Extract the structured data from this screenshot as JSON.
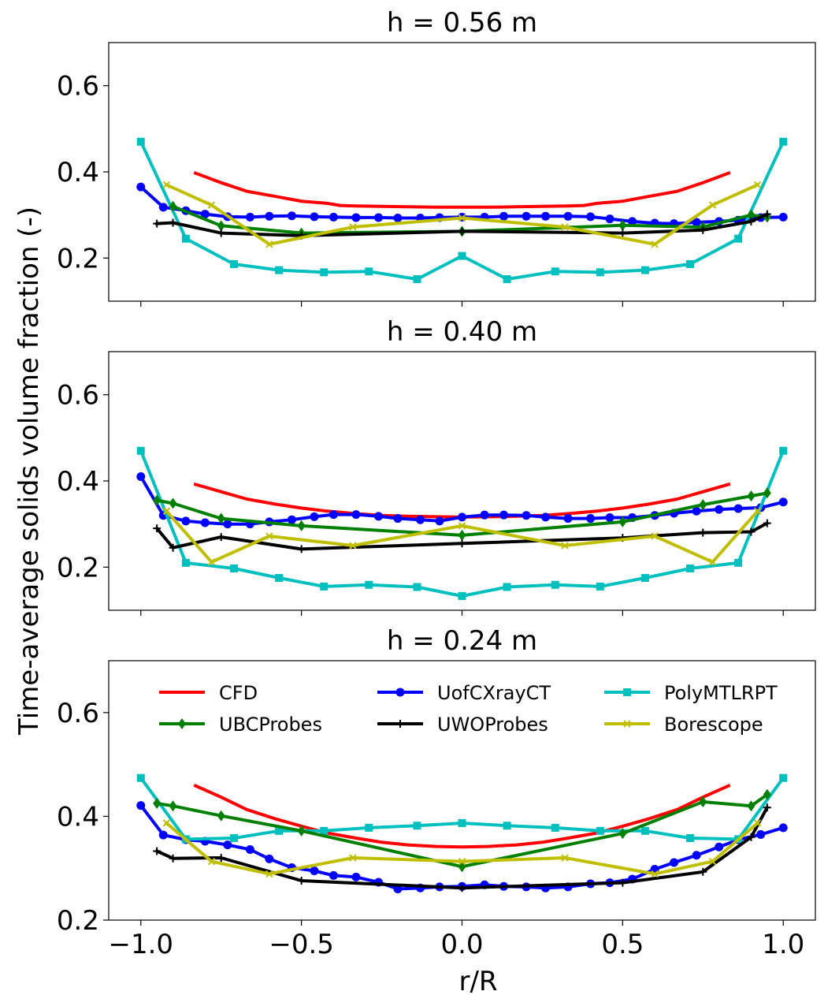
{
  "figure": {
    "ylabel": "Time-average solids volume fraction (-)",
    "xlabel": "r/R"
  },
  "chart_data": [
    {
      "type": "line",
      "title": "h = 0.56 m",
      "ylim": [
        0.1,
        0.7
      ],
      "xlim": [
        -1.1,
        1.1
      ],
      "yticks": [
        0.2,
        0.4,
        0.6
      ],
      "ytick_labels": [
        "0.2",
        "0.4",
        "0.6"
      ],
      "xticks": [
        -1.0,
        -0.5,
        0.0,
        0.5,
        1.0
      ],
      "xtick_labels": [],
      "legend": false,
      "series": [
        {
          "name": "CFD",
          "color": "#ff0000",
          "marker": "none",
          "x": [
            -0.83,
            -0.75,
            -0.67,
            -0.58,
            -0.5,
            -0.42,
            -0.38,
            -0.33,
            -0.25,
            -0.17,
            -0.08,
            0,
            0.08,
            0.17,
            0.25,
            0.33,
            0.38,
            0.42,
            0.5,
            0.58,
            0.67,
            0.75,
            0.83
          ],
          "y": [
            0.397,
            0.375,
            0.355,
            0.343,
            0.332,
            0.327,
            0.322,
            0.321,
            0.32,
            0.319,
            0.318,
            0.318,
            0.318,
            0.319,
            0.32,
            0.321,
            0.322,
            0.327,
            0.332,
            0.343,
            0.355,
            0.375,
            0.397
          ]
        },
        {
          "name": "UofCXrayCT",
          "color": "#0000ff",
          "marker": "circle",
          "x": [
            -1.0,
            -0.93,
            -0.86,
            -0.8,
            -0.73,
            -0.66,
            -0.6,
            -0.53,
            -0.46,
            -0.4,
            -0.33,
            -0.26,
            -0.2,
            -0.13,
            -0.07,
            0,
            0.07,
            0.13,
            0.2,
            0.26,
            0.33,
            0.4,
            0.46,
            0.53,
            0.6,
            0.66,
            0.73,
            0.8,
            0.86,
            0.93,
            1.0
          ],
          "y": [
            0.365,
            0.318,
            0.31,
            0.302,
            0.296,
            0.295,
            0.297,
            0.298,
            0.296,
            0.295,
            0.294,
            0.294,
            0.293,
            0.293,
            0.294,
            0.295,
            0.295,
            0.297,
            0.297,
            0.297,
            0.297,
            0.296,
            0.291,
            0.285,
            0.281,
            0.28,
            0.283,
            0.285,
            0.288,
            0.294,
            0.295
          ]
        },
        {
          "name": "PolyMTLRPT",
          "color": "#00bfbf",
          "marker": "square",
          "x": [
            -1.0,
            -0.86,
            -0.71,
            -0.57,
            -0.43,
            -0.29,
            -0.14,
            0,
            0.14,
            0.29,
            0.43,
            0.57,
            0.71,
            0.86,
            1.0
          ],
          "y": [
            0.47,
            0.245,
            0.186,
            0.172,
            0.167,
            0.169,
            0.151,
            0.205,
            0.151,
            0.169,
            0.167,
            0.172,
            0.186,
            0.245,
            0.47
          ]
        },
        {
          "name": "UBCProbes",
          "color": "#008000",
          "marker": "diamond",
          "x": [
            -0.9,
            -0.75,
            -0.5,
            0,
            0.5,
            0.75,
            0.9,
            0.95
          ],
          "y": [
            0.32,
            0.275,
            0.258,
            0.262,
            0.276,
            0.272,
            0.3,
            0.295
          ]
        },
        {
          "name": "UWOProbes",
          "color": "#000000",
          "marker": "plus",
          "x": [
            -0.95,
            -0.9,
            -0.75,
            -0.5,
            0,
            0.5,
            0.75,
            0.9,
            0.95
          ],
          "y": [
            0.28,
            0.282,
            0.258,
            0.252,
            0.262,
            0.258,
            0.265,
            0.285,
            0.302
          ]
        },
        {
          "name": "Borescope",
          "color": "#bfbf00",
          "marker": "x",
          "x": [
            -0.92,
            -0.78,
            -0.6,
            -0.34,
            0,
            0.32,
            0.6,
            0.78,
            0.92
          ],
          "y": [
            0.37,
            0.323,
            0.232,
            0.272,
            0.293,
            0.272,
            0.232,
            0.323,
            0.37
          ]
        }
      ]
    },
    {
      "type": "line",
      "title": "h = 0.40 m",
      "ylim": [
        0.1,
        0.7
      ],
      "xlim": [
        -1.1,
        1.1
      ],
      "yticks": [
        0.2,
        0.4,
        0.6
      ],
      "ytick_labels": [
        "0.2",
        "0.4",
        "0.6"
      ],
      "xticks": [
        -1.0,
        -0.5,
        0.0,
        0.5,
        1.0
      ],
      "xtick_labels": [],
      "legend": false,
      "series": [
        {
          "name": "CFD",
          "color": "#ff0000",
          "marker": "none",
          "x": [
            -0.83,
            -0.75,
            -0.67,
            -0.58,
            -0.5,
            -0.42,
            -0.33,
            -0.25,
            -0.17,
            -0.08,
            0,
            0.08,
            0.17,
            0.25,
            0.33,
            0.42,
            0.5,
            0.58,
            0.67,
            0.75,
            0.83
          ],
          "y": [
            0.392,
            0.375,
            0.358,
            0.346,
            0.337,
            0.33,
            0.324,
            0.32,
            0.318,
            0.317,
            0.316,
            0.317,
            0.318,
            0.32,
            0.324,
            0.33,
            0.337,
            0.346,
            0.358,
            0.375,
            0.392
          ]
        },
        {
          "name": "UofCXrayCT",
          "color": "#0000ff",
          "marker": "circle",
          "x": [
            -1.0,
            -0.93,
            -0.86,
            -0.8,
            -0.73,
            -0.66,
            -0.6,
            -0.53,
            -0.46,
            -0.4,
            -0.33,
            -0.26,
            -0.2,
            -0.13,
            -0.07,
            0,
            0.07,
            0.13,
            0.2,
            0.26,
            0.33,
            0.4,
            0.46,
            0.53,
            0.6,
            0.66,
            0.73,
            0.8,
            0.86,
            0.93,
            1.0
          ],
          "y": [
            0.41,
            0.32,
            0.307,
            0.303,
            0.3,
            0.3,
            0.305,
            0.31,
            0.317,
            0.322,
            0.322,
            0.318,
            0.313,
            0.31,
            0.307,
            0.316,
            0.321,
            0.321,
            0.32,
            0.316,
            0.313,
            0.313,
            0.315,
            0.315,
            0.32,
            0.325,
            0.33,
            0.334,
            0.336,
            0.338,
            0.351
          ]
        },
        {
          "name": "PolyMTLRPT",
          "color": "#00bfbf",
          "marker": "square",
          "x": [
            -1.0,
            -0.86,
            -0.71,
            -0.57,
            -0.43,
            -0.29,
            -0.14,
            0,
            0.14,
            0.29,
            0.43,
            0.57,
            0.71,
            0.86,
            1.0
          ],
          "y": [
            0.47,
            0.21,
            0.197,
            0.175,
            0.155,
            0.159,
            0.154,
            0.133,
            0.154,
            0.159,
            0.155,
            0.175,
            0.197,
            0.21,
            0.47
          ]
        },
        {
          "name": "UBCProbes",
          "color": "#008000",
          "marker": "diamond",
          "x": [
            -0.95,
            -0.9,
            -0.75,
            -0.5,
            0,
            0.5,
            0.75,
            0.9,
            0.95
          ],
          "y": [
            0.355,
            0.348,
            0.313,
            0.296,
            0.274,
            0.305,
            0.345,
            0.365,
            0.372
          ]
        },
        {
          "name": "UWOProbes",
          "color": "#000000",
          "marker": "plus",
          "x": [
            -0.95,
            -0.9,
            -0.75,
            -0.5,
            0,
            0.5,
            0.75,
            0.9,
            0.95
          ],
          "y": [
            0.29,
            0.245,
            0.27,
            0.242,
            0.255,
            0.268,
            0.28,
            0.282,
            0.302
          ]
        },
        {
          "name": "Borescope",
          "color": "#bfbf00",
          "marker": "x",
          "x": [
            -0.92,
            -0.78,
            -0.6,
            -0.34,
            0,
            0.32,
            0.6,
            0.78,
            0.92
          ],
          "y": [
            0.33,
            0.212,
            0.272,
            0.25,
            0.296,
            0.25,
            0.272,
            0.212,
            0.33
          ]
        }
      ]
    },
    {
      "type": "line",
      "title": "h = 0.24 m",
      "ylim": [
        0.2,
        0.7
      ],
      "xlim": [
        -1.1,
        1.1
      ],
      "yticks": [
        0.2,
        0.4,
        0.6
      ],
      "ytick_labels": [
        "0.2",
        "0.4",
        "0.6"
      ],
      "xticks": [
        -1.0,
        -0.5,
        0.0,
        0.5,
        1.0
      ],
      "xtick_labels": [
        "−1.0",
        "−0.5",
        "0.0",
        "0.5",
        "1.0"
      ],
      "legend": true,
      "legend_position": "top, 3 columns",
      "series": [
        {
          "name": "CFD",
          "color": "#ff0000",
          "marker": "none",
          "x": [
            -0.83,
            -0.75,
            -0.67,
            -0.58,
            -0.5,
            -0.42,
            -0.33,
            -0.25,
            -0.17,
            -0.08,
            0,
            0.08,
            0.17,
            0.25,
            0.33,
            0.42,
            0.5,
            0.58,
            0.67,
            0.75,
            0.83
          ],
          "y": [
            0.459,
            0.437,
            0.413,
            0.395,
            0.381,
            0.368,
            0.358,
            0.35,
            0.345,
            0.342,
            0.341,
            0.342,
            0.345,
            0.35,
            0.358,
            0.368,
            0.381,
            0.395,
            0.413,
            0.437,
            0.459
          ]
        },
        {
          "name": "UofCXrayCT",
          "color": "#0000ff",
          "marker": "circle",
          "x": [
            -1.0,
            -0.93,
            -0.86,
            -0.8,
            -0.73,
            -0.66,
            -0.6,
            -0.53,
            -0.46,
            -0.4,
            -0.33,
            -0.26,
            -0.2,
            -0.13,
            -0.07,
            0,
            0.07,
            0.13,
            0.2,
            0.26,
            0.33,
            0.4,
            0.46,
            0.53,
            0.6,
            0.66,
            0.73,
            0.8,
            0.86,
            0.93,
            1.0
          ],
          "y": [
            0.421,
            0.364,
            0.355,
            0.352,
            0.345,
            0.336,
            0.318,
            0.301,
            0.295,
            0.286,
            0.283,
            0.273,
            0.26,
            0.262,
            0.264,
            0.265,
            0.268,
            0.265,
            0.264,
            0.262,
            0.264,
            0.27,
            0.272,
            0.279,
            0.298,
            0.311,
            0.325,
            0.341,
            0.355,
            0.365,
            0.378
          ]
        },
        {
          "name": "PolyMTLRPT",
          "color": "#00bfbf",
          "marker": "square",
          "x": [
            -1.0,
            -0.86,
            -0.71,
            -0.57,
            -0.43,
            -0.29,
            -0.14,
            0,
            0.14,
            0.29,
            0.43,
            0.57,
            0.71,
            0.86,
            1.0
          ],
          "y": [
            0.474,
            0.356,
            0.358,
            0.372,
            0.372,
            0.378,
            0.382,
            0.387,
            0.382,
            0.378,
            0.372,
            0.372,
            0.358,
            0.356,
            0.474
          ]
        },
        {
          "name": "UBCProbes",
          "color": "#008000",
          "marker": "diamond",
          "x": [
            -0.95,
            -0.9,
            -0.75,
            -0.5,
            0,
            0.5,
            0.75,
            0.9,
            0.95
          ],
          "y": [
            0.425,
            0.42,
            0.401,
            0.372,
            0.303,
            0.367,
            0.428,
            0.42,
            0.442
          ]
        },
        {
          "name": "UWOProbes",
          "color": "#000000",
          "marker": "plus",
          "x": [
            -0.95,
            -0.9,
            -0.75,
            -0.5,
            0,
            0.5,
            0.75,
            0.9,
            0.95
          ],
          "y": [
            0.333,
            0.319,
            0.32,
            0.276,
            0.262,
            0.272,
            0.293,
            0.36,
            0.417
          ]
        },
        {
          "name": "Borescope",
          "color": "#bfbf00",
          "marker": "x",
          "x": [
            -0.92,
            -0.78,
            -0.6,
            -0.34,
            0,
            0.32,
            0.6,
            0.78,
            0.92
          ],
          "y": [
            0.387,
            0.313,
            0.289,
            0.32,
            0.313,
            0.32,
            0.289,
            0.313,
            0.387
          ]
        }
      ]
    }
  ]
}
